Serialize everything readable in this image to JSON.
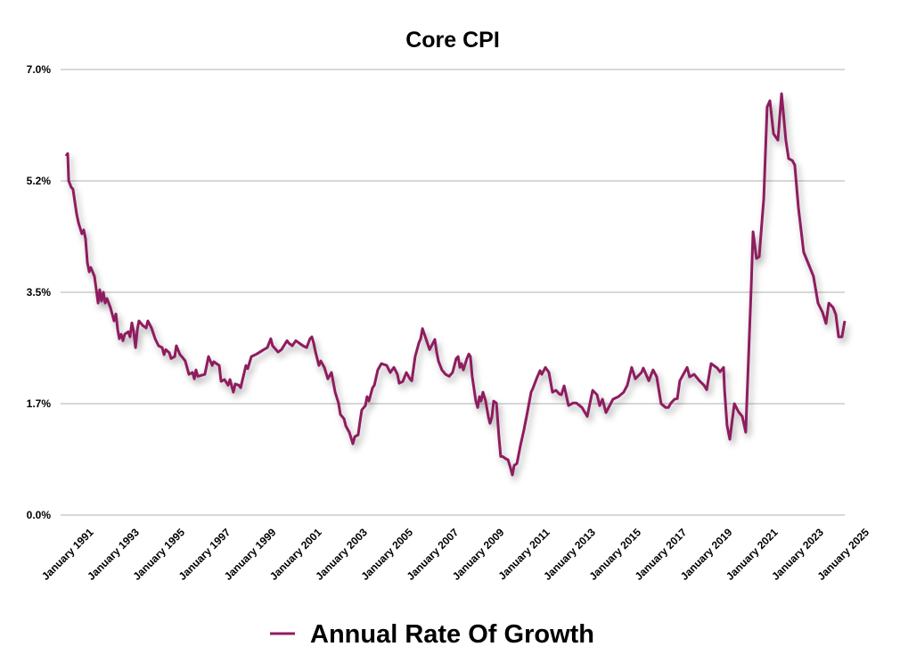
{
  "chart_data": {
    "type": "line",
    "title": "Core CPI",
    "xlabel": "",
    "ylabel": "",
    "ylim": [
      0,
      7
    ],
    "xlim": [
      1990,
      2025
    ],
    "grid": true,
    "legend_placement": "bottom-center",
    "y_ticks": [
      {
        "value": 0,
        "label": "0.0%"
      },
      {
        "value": 1.75,
        "label": "1.7%"
      },
      {
        "value": 3.5,
        "label": "3.5%"
      },
      {
        "value": 5.25,
        "label": "5.2%"
      },
      {
        "value": 7,
        "label": "7.0%"
      }
    ],
    "x_ticks": [
      {
        "value": 1991,
        "label": "January 1991"
      },
      {
        "value": 1993,
        "label": "January 1993"
      },
      {
        "value": 1995,
        "label": "January 1995"
      },
      {
        "value": 1997,
        "label": "January 1997"
      },
      {
        "value": 1999,
        "label": "January 1999"
      },
      {
        "value": 2001,
        "label": "January 2001"
      },
      {
        "value": 2003,
        "label": "January 2003"
      },
      {
        "value": 2005,
        "label": "January 2005"
      },
      {
        "value": 2007,
        "label": "January 2007"
      },
      {
        "value": 2009,
        "label": "January 2009"
      },
      {
        "value": 2011,
        "label": "January 2011"
      },
      {
        "value": 2013,
        "label": "January 2013"
      },
      {
        "value": 2015,
        "label": "January 2015"
      },
      {
        "value": 2017,
        "label": "January 2017"
      },
      {
        "value": 2019,
        "label": "January 2019"
      },
      {
        "value": 2021,
        "label": "January 2021"
      },
      {
        "value": 2023,
        "label": "January 2023"
      },
      {
        "value": 2025,
        "label": "January 2025"
      }
    ],
    "series": [
      {
        "name": "Annual Rate Of Growth",
        "color": "#8e1f5e",
        "x": [
          1990.0,
          1990.08,
          1990.12,
          1990.23,
          1990.31,
          1990.47,
          1990.55,
          1990.7,
          1990.78,
          1990.86,
          1990.94,
          1991.02,
          1991.09,
          1991.25,
          1991.41,
          1991.48,
          1991.56,
          1991.64,
          1991.72,
          1991.8,
          1991.95,
          1992.11,
          1992.19,
          1992.27,
          1992.34,
          1992.42,
          1992.5,
          1992.58,
          1992.73,
          1992.81,
          1992.89,
          1992.97,
          1993.05,
          1993.13,
          1993.2,
          1993.36,
          1993.52,
          1993.59,
          1993.75,
          1993.91,
          1994.06,
          1994.22,
          1994.3,
          1994.38,
          1994.53,
          1994.61,
          1994.77,
          1994.84,
          1995.0,
          1995.08,
          1995.23,
          1995.31,
          1995.39,
          1995.55,
          1995.63,
          1995.7,
          1995.78,
          1996.09,
          1996.25,
          1996.41,
          1996.48,
          1996.72,
          1996.8,
          1996.95,
          1997.11,
          1997.19,
          1997.34,
          1997.42,
          1997.58,
          1997.66,
          1997.73,
          1997.89,
          1997.97,
          1998.13,
          1998.36,
          1998.67,
          1998.83,
          1998.98,
          1999.06,
          1999.3,
          1999.45,
          1999.69,
          1999.77,
          1999.92,
          2000.08,
          2000.23,
          2000.39,
          2000.55,
          2000.7,
          2000.78,
          2000.86,
          2000.94,
          2001.09,
          2001.17,
          2001.33,
          2001.48,
          2001.64,
          2001.8,
          2001.95,
          2002.03,
          2002.19,
          2002.27,
          2002.42,
          2002.58,
          2002.66,
          2002.81,
          2002.89,
          2002.97,
          2003.13,
          2003.2,
          2003.28,
          2003.44,
          2003.52,
          2003.67,
          2003.83,
          2004.06,
          2004.22,
          2004.38,
          2004.53,
          2004.61,
          2004.77,
          2004.92,
          2005.08,
          2005.16,
          2005.31,
          2005.47,
          2005.55,
          2005.63,
          2005.78,
          2005.94,
          2006.09,
          2006.17,
          2006.25,
          2006.33,
          2006.48,
          2006.64,
          2006.8,
          2006.95,
          2007.11,
          2007.19,
          2007.27,
          2007.34,
          2007.42,
          2007.58,
          2007.66,
          2007.73,
          2007.81,
          2007.97,
          2008.05,
          2008.13,
          2008.2,
          2008.28,
          2008.4,
          2008.52,
          2008.59,
          2008.67,
          2008.75,
          2008.87,
          2008.98,
          2009.06,
          2009.14,
          2009.3,
          2009.38,
          2009.49,
          2009.57,
          2009.65,
          2009.77,
          2009.92,
          2010.08,
          2010.23,
          2010.39,
          2010.47,
          2010.63,
          2010.78,
          2010.86,
          2011.02,
          2011.17,
          2011.33,
          2011.48,
          2011.64,
          2011.72,
          2011.84,
          2012.03,
          2012.23,
          2012.38,
          2012.62,
          2012.85,
          2013.09,
          2013.28,
          2013.4,
          2013.52,
          2013.67,
          2013.98,
          2014.22,
          2014.45,
          2014.61,
          2014.8,
          2014.96,
          2015.23,
          2015.31,
          2015.55,
          2015.74,
          2015.9,
          2016.09,
          2016.29,
          2016.41,
          2016.52,
          2016.68,
          2016.8,
          2016.91,
          2017.11,
          2017.23,
          2017.34,
          2017.54,
          2017.77,
          2017.97,
          2018.09,
          2018.28,
          2018.55,
          2018.67,
          2018.83,
          2018.87,
          2018.98,
          2019.1,
          2019.3,
          2019.49,
          2019.65,
          2019.8,
          2019.84,
          2020.04,
          2020.12,
          2020.27,
          2020.39,
          2020.59,
          2020.74,
          2020.86,
          2021.02,
          2021.21,
          2021.37,
          2021.56,
          2021.68,
          2021.84,
          2021.95,
          2022.11,
          2022.34,
          2022.5,
          2022.77,
          2022.97,
          2023.16,
          2023.32,
          2023.44,
          2023.63,
          2023.75,
          2023.87,
          2024.02,
          2024.14
        ],
        "y": [
          5.64,
          5.68,
          5.25,
          5.15,
          5.12,
          4.73,
          4.59,
          4.42,
          4.48,
          4.34,
          3.96,
          3.82,
          3.89,
          3.75,
          3.33,
          3.54,
          3.36,
          3.5,
          3.33,
          3.4,
          3.26,
          3.05,
          3.16,
          2.91,
          2.77,
          2.84,
          2.74,
          2.84,
          2.88,
          2.8,
          3.02,
          2.88,
          2.63,
          2.91,
          3.05,
          2.98,
          2.94,
          3.05,
          2.94,
          2.77,
          2.66,
          2.63,
          2.52,
          2.6,
          2.55,
          2.46,
          2.49,
          2.66,
          2.52,
          2.49,
          2.42,
          2.32,
          2.21,
          2.24,
          2.14,
          2.28,
          2.18,
          2.21,
          2.49,
          2.35,
          2.41,
          2.35,
          2.1,
          2.13,
          2.04,
          2.13,
          1.93,
          2.06,
          2.04,
          2.0,
          2.11,
          2.35,
          2.3,
          2.49,
          2.53,
          2.6,
          2.63,
          2.77,
          2.66,
          2.56,
          2.6,
          2.74,
          2.7,
          2.66,
          2.74,
          2.7,
          2.66,
          2.63,
          2.77,
          2.8,
          2.7,
          2.56,
          2.35,
          2.42,
          2.32,
          2.14,
          2.24,
          1.93,
          1.76,
          1.58,
          1.51,
          1.4,
          1.3,
          1.12,
          1.23,
          1.26,
          1.47,
          1.65,
          1.72,
          1.86,
          1.79,
          2.0,
          2.04,
          2.28,
          2.38,
          2.35,
          2.24,
          2.32,
          2.21,
          2.07,
          2.1,
          2.24,
          2.14,
          2.11,
          2.49,
          2.7,
          2.77,
          2.93,
          2.77,
          2.6,
          2.7,
          2.76,
          2.56,
          2.42,
          2.28,
          2.21,
          2.18,
          2.24,
          2.46,
          2.49,
          2.32,
          2.38,
          2.28,
          2.46,
          2.53,
          2.49,
          2.18,
          1.79,
          1.69,
          1.86,
          1.79,
          1.93,
          1.79,
          1.54,
          1.44,
          1.54,
          1.79,
          1.76,
          1.23,
          0.92,
          0.92,
          0.88,
          0.87,
          0.74,
          0.63,
          0.78,
          0.81,
          1.09,
          1.34,
          1.62,
          1.93,
          1.99,
          2.14,
          2.27,
          2.21,
          2.32,
          2.24,
          1.93,
          1.96,
          1.9,
          1.89,
          2.03,
          1.72,
          1.76,
          1.76,
          1.69,
          1.55,
          1.96,
          1.89,
          1.72,
          1.82,
          1.61,
          1.82,
          1.86,
          1.93,
          2.04,
          2.32,
          2.14,
          2.24,
          2.31,
          2.11,
          2.28,
          2.17,
          1.75,
          1.69,
          1.69,
          1.76,
          1.82,
          1.83,
          2.11,
          2.24,
          2.32,
          2.17,
          2.21,
          2.11,
          2.04,
          1.97,
          2.38,
          2.31,
          2.25,
          2.32,
          1.97,
          1.41,
          1.19,
          1.75,
          1.62,
          1.55,
          1.3,
          1.69,
          3.57,
          4.45,
          4.03,
          4.06,
          4.97,
          6.41,
          6.51,
          5.99,
          5.89,
          6.62,
          5.89,
          5.6,
          5.57,
          5.5,
          4.83,
          4.13,
          3.99,
          3.75,
          3.33,
          3.19,
          3.01,
          3.33,
          3.26,
          3.15,
          2.8,
          2.8,
          3.05
        ]
      }
    ]
  }
}
